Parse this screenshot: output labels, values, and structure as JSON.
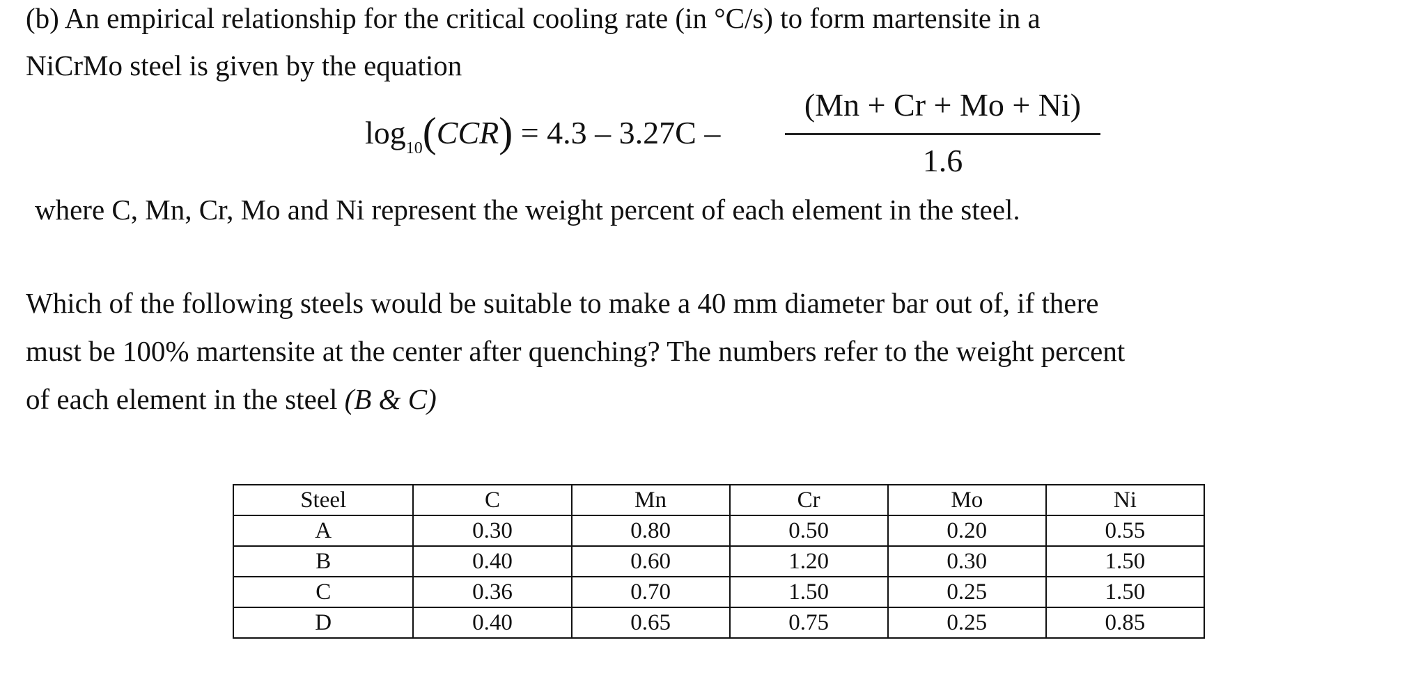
{
  "intro": [
    "(b) An empirical relationship for the critical cooling rate (in °C/s) to form martensite in a",
    "NiCrMo steel is given by the equation"
  ],
  "equation": {
    "func": "log",
    "base": "10",
    "arg": "CCR",
    "rhs": "= 4.3 – 3.27C –",
    "numerator": "(Mn + Cr + Mo + Ni)",
    "denominator": "1.6"
  },
  "where": "where C, Mn, Cr, Mo and Ni represent the weight percent of each element in the steel.",
  "question": [
    "Which of the following steels would be suitable to make a 40 mm diameter bar out of, if there",
    "must be 100% martensite at the center after quenching? The numbers refer to the weight percent",
    "of each element in the steel"
  ],
  "answer": "(B & C)",
  "table": {
    "header": [
      "Steel",
      "C",
      "Mn",
      "Cr",
      "Mo",
      "Ni"
    ],
    "rows": [
      [
        "A",
        "0.30",
        "0.80",
        "0.50",
        "0.20",
        "0.55"
      ],
      [
        "B",
        "0.40",
        "0.60",
        "1.20",
        "0.30",
        "1.50"
      ],
      [
        "C",
        "0.36",
        "0.70",
        "1.50",
        "0.25",
        "1.50"
      ],
      [
        "D",
        "0.40",
        "0.65",
        "0.75",
        "0.25",
        "0.85"
      ]
    ]
  }
}
